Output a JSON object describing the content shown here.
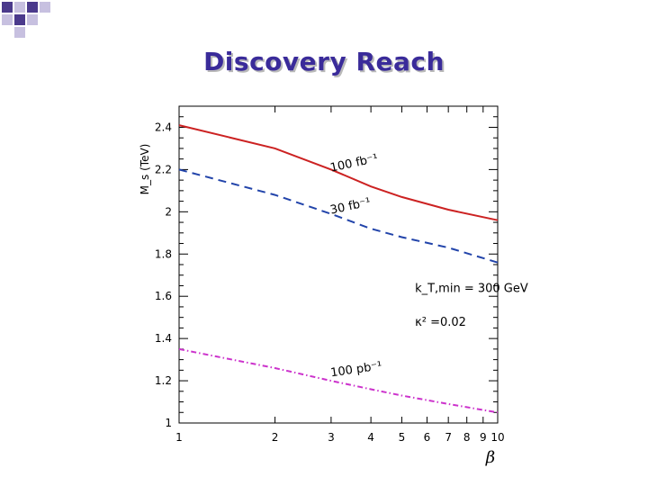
{
  "slide": {
    "title": "Discovery Reach"
  },
  "colors": {
    "title": "#3a2b9a",
    "corner_dark": "#4b3a8c",
    "corner_light": "#c7c0e0"
  },
  "chart_data": {
    "type": "line",
    "ylabel": "M_s (TeV)",
    "xlabel": "β",
    "x_scale": "log",
    "xlim": [
      1,
      10
    ],
    "ylim": [
      1,
      2.5
    ],
    "x_ticks": [
      1,
      2,
      3,
      4,
      5,
      6,
      7,
      8,
      9,
      10
    ],
    "x_tick_labels": [
      "1",
      "2",
      "3",
      "4",
      "5",
      "6",
      "7",
      "8",
      "9",
      "10"
    ],
    "y_ticks": [
      1,
      1.2,
      1.4,
      1.6,
      1.8,
      2,
      2.2,
      2.4
    ],
    "y_tick_labels": [
      "1",
      "1.2",
      "1.4",
      "1.6",
      "1.8",
      "2",
      "2.2",
      "2.4"
    ],
    "series": [
      {
        "name": "100 fb⁻¹",
        "color": "#cc2222",
        "style": "solid",
        "x": [
          1,
          2,
          3,
          4,
          5,
          7,
          10
        ],
        "y": [
          2.41,
          2.3,
          2.2,
          2.12,
          2.07,
          2.01,
          1.96
        ]
      },
      {
        "name": "30 fb⁻¹",
        "color": "#2244aa",
        "style": "dashed",
        "x": [
          1,
          2,
          3,
          4,
          5,
          7,
          10
        ],
        "y": [
          2.2,
          2.08,
          1.99,
          1.92,
          1.88,
          1.83,
          1.76
        ]
      },
      {
        "name": "100 pb⁻¹",
        "color": "#cc33cc",
        "style": "dashdot",
        "x": [
          1,
          2,
          3,
          4,
          5,
          7,
          10
        ],
        "y": [
          1.35,
          1.26,
          1.2,
          1.16,
          1.13,
          1.09,
          1.05
        ]
      }
    ],
    "annotations": [
      {
        "id": "label_100fb",
        "text": "100 fb⁻¹",
        "x": 3.0,
        "y": 2.19,
        "angle": -12
      },
      {
        "id": "label_30fb",
        "text": "30 fb⁻¹",
        "x": 3.0,
        "y": 1.99,
        "angle": -12
      },
      {
        "id": "label_100pb",
        "text": "100 pb⁻¹",
        "x": 3.0,
        "y": 1.22,
        "angle": -8
      },
      {
        "id": "label_kt",
        "text": "k_T,min = 300 GeV",
        "x": 5.5,
        "y": 1.62,
        "angle": 0
      },
      {
        "id": "label_kappa",
        "text": "κ² =0.02",
        "x": 5.5,
        "y": 1.46,
        "angle": 0
      }
    ]
  }
}
